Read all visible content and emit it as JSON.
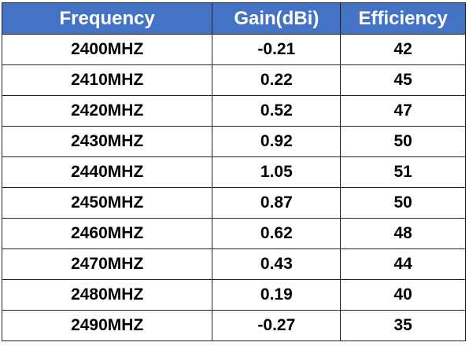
{
  "table": {
    "headers": [
      "Frequency",
      "Gain(dBi)",
      "Efficiency"
    ],
    "rows": [
      [
        "2400MHZ",
        "-0.21",
        "42"
      ],
      [
        "2410MHZ",
        "0.22",
        "45"
      ],
      [
        "2420MHZ",
        "0.52",
        "47"
      ],
      [
        "2430MHZ",
        "0.92",
        "50"
      ],
      [
        "2440MHZ",
        "1.05",
        "51"
      ],
      [
        "2450MHZ",
        "0.87",
        "50"
      ],
      [
        "2460MHZ",
        "0.62",
        "48"
      ],
      [
        "2470MHZ",
        "0.43",
        "44"
      ],
      [
        "2480MHZ",
        "0.19",
        "40"
      ],
      [
        "2490MHZ",
        "-0.27",
        "35"
      ]
    ]
  },
  "colors": {
    "header_bg": "#4472c4",
    "header_text": "#ffffff",
    "border": "#222222"
  }
}
